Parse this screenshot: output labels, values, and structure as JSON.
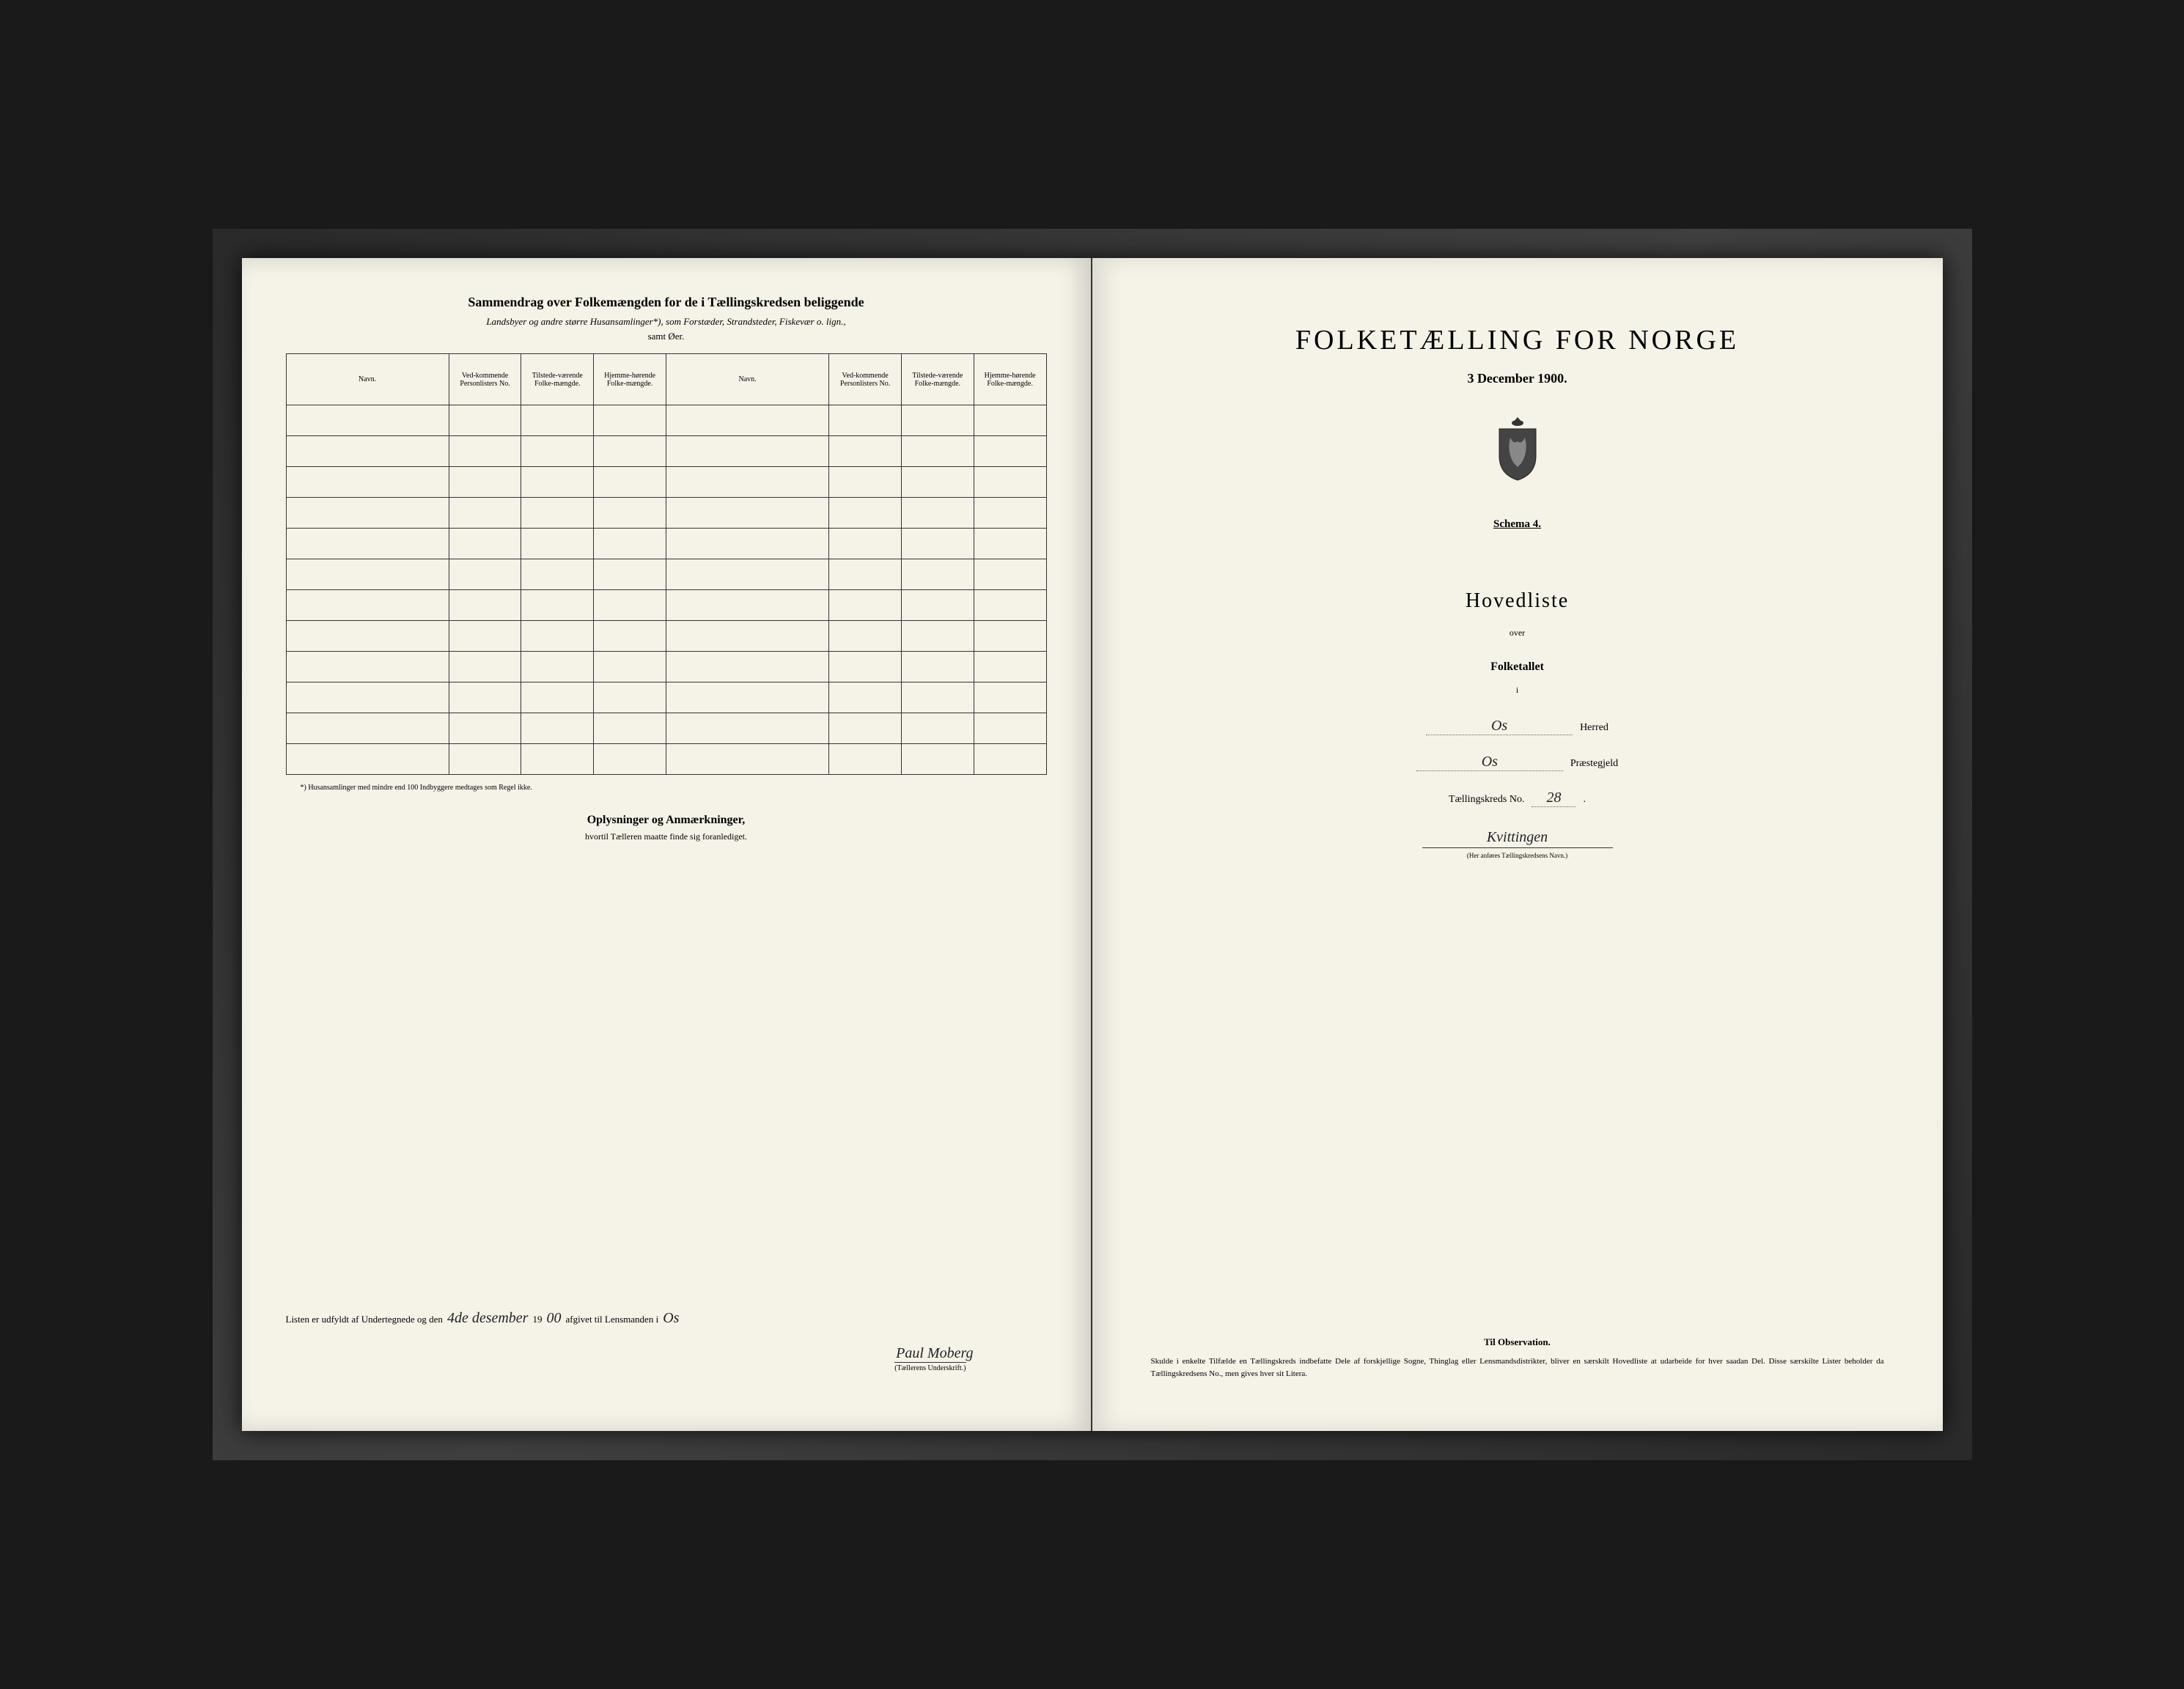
{
  "left": {
    "title": "Sammendrag over Folkemængden for de i Tællingskredsen beliggende",
    "subtitle1": "Landsbyer og andre større Husansamlinger*), som Forstæder, Strandsteder, Fiskevær o. lign.,",
    "subtitle2": "samt Øer.",
    "columns": [
      "Navn.",
      "Ved-kommende Personlisters No.",
      "Tilstede-værende Folke-mængde.",
      "Hjemme-hørende Folke-mængde.",
      "Navn.",
      "Ved-kommende Personlisters No.",
      "Tilstede-værende Folke-mængde.",
      "Hjemme-hørende Folke-mængde."
    ],
    "empty_rows": 12,
    "footnote": "*) Husansamlinger med mindre end 100 Indbyggere medtages som Regel ikke.",
    "section_title": "Oplysninger og Anmærkninger,",
    "section_sub": "hvortil Tælleren maatte finde sig foranlediget.",
    "sig_prefix": "Listen er udfyldt af Undertegnede og den",
    "sig_date": "4de desember",
    "sig_year_prefix": "19",
    "sig_year_hand": "00",
    "sig_mid": "afgivet til Lensmanden i",
    "sig_place": "Os",
    "sig_name": "Paul Moberg",
    "sig_caption": "(Tællerens Underskrift.)"
  },
  "right": {
    "main_title": "FOLKETÆLLING FOR NORGE",
    "date": "3 December 1900.",
    "schema": "Schema 4.",
    "hovedliste": "Hovedliste",
    "over": "over",
    "folketallet": "Folketallet",
    "i": "i",
    "herred_value": "Os",
    "herred_label": "Herred",
    "praeste_value": "Os",
    "praeste_label": "Præstegjeld",
    "kreds_label": "Tællingskreds No.",
    "kreds_no": "28",
    "kreds_name": "Kvittingen",
    "kreds_caption": "(Her anføres Tællingskredsens Navn.)",
    "obs_title": "Til Observation.",
    "obs_text": "Skulde i enkelte Tilfælde en Tællingskreds indbefatte Dele af forskjellige Sogne, Thinglag eller Lensmandsdistrikter, bliver en særskilt Hovedliste at udarbeide for hver saadan Del. Disse særskilte Lister beholder da Tællingskredsens No., men gives hver sit Litera."
  },
  "colors": {
    "paper": "#f5f2e8",
    "ink": "#1a1a1a",
    "frame": "#2a2a2a"
  }
}
